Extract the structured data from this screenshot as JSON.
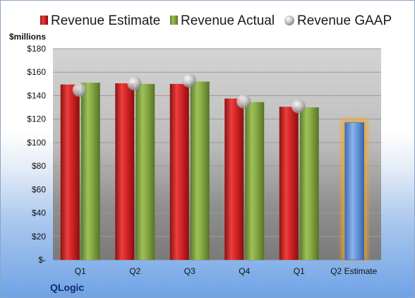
{
  "company": "QLogic",
  "colors": {
    "estimate": "#cc2222",
    "actual": "#7fa141",
    "gaap": "#c0c0c0",
    "forecast": "#5b8fd6",
    "forecast_glow": "#f5a623"
  },
  "chart_data": {
    "type": "bar",
    "ylabel": "$millions",
    "ylim": [
      0,
      180
    ],
    "yticks": [
      0,
      20,
      40,
      60,
      80,
      100,
      120,
      140,
      160,
      180
    ],
    "ytick_labels": [
      "$-",
      "$20",
      "$40",
      "$60",
      "$80",
      "$100",
      "$120",
      "$140",
      "$160",
      "$180"
    ],
    "categories": [
      "Q1",
      "Q2",
      "Q3",
      "Q4",
      "Q1",
      "Q2 Estimate"
    ],
    "grid": true,
    "legend_position": "top",
    "series": [
      {
        "name": "Revenue Estimate",
        "kind": "bar",
        "values": [
          149.5,
          150.5,
          150,
          137.5,
          130.5,
          117
        ]
      },
      {
        "name": "Revenue Actual",
        "kind": "bar",
        "values": [
          151,
          150,
          152,
          134.5,
          130,
          null
        ]
      },
      {
        "name": "Revenue GAAP",
        "kind": "marker",
        "values": [
          145,
          150.5,
          153,
          135,
          131,
          null
        ]
      }
    ]
  }
}
